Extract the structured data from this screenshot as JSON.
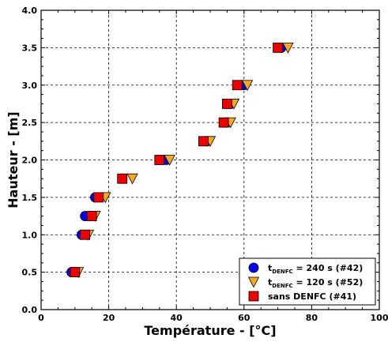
{
  "chart_data": {
    "type": "scatter",
    "xlabel": "Température  - [°C]",
    "ylabel": "Hauteur - [m]",
    "xlim": [
      0,
      100
    ],
    "ylim": [
      0,
      4.0
    ],
    "x_ticks": [
      "0",
      "20",
      "40",
      "60",
      "80",
      "100"
    ],
    "y_ticks": [
      "0.0",
      "0.5",
      "1.0",
      "1.5",
      "2.0",
      "2.5",
      "3.0",
      "3.5",
      "4.0"
    ],
    "grid": true,
    "legend_position": "bottom-right",
    "series": [
      {
        "name_main": "t",
        "name_sub": "DENFC",
        "name_rest": " = 240 s (#42)",
        "marker": "circle",
        "color": "#0000ee",
        "points": [
          [
            9,
            0.5
          ],
          [
            12,
            1.0
          ],
          [
            13,
            1.25
          ],
          [
            16,
            1.5
          ],
          [
            24,
            1.75
          ],
          [
            37,
            2.0
          ],
          [
            49,
            2.25
          ],
          [
            55,
            2.5
          ],
          [
            56,
            2.75
          ],
          [
            60,
            3.0
          ],
          [
            71,
            3.5
          ]
        ]
      },
      {
        "name_main": "t",
        "name_sub": "DENFC",
        "name_rest": " = 120 s (#52)",
        "marker": "triangle-down",
        "color": "#f5a623",
        "points": [
          [
            11,
            0.5
          ],
          [
            14,
            1.0
          ],
          [
            16,
            1.25
          ],
          [
            19,
            1.5
          ],
          [
            27,
            1.75
          ],
          [
            38,
            2.0
          ],
          [
            50,
            2.25
          ],
          [
            56,
            2.5
          ],
          [
            57,
            2.75
          ],
          [
            61,
            3.0
          ],
          [
            73,
            3.5
          ]
        ]
      },
      {
        "name_main": "sans DENFC (#41)",
        "name_sub": "",
        "name_rest": "",
        "marker": "square",
        "color": "#ee0000",
        "points": [
          [
            10,
            0.5
          ],
          [
            13,
            1.0
          ],
          [
            15,
            1.25
          ],
          [
            17,
            1.5
          ],
          [
            24,
            1.75
          ],
          [
            35,
            2.0
          ],
          [
            48,
            2.25
          ],
          [
            54,
            2.5
          ],
          [
            55,
            2.75
          ],
          [
            58,
            3.0
          ],
          [
            70,
            3.5
          ]
        ]
      }
    ]
  }
}
